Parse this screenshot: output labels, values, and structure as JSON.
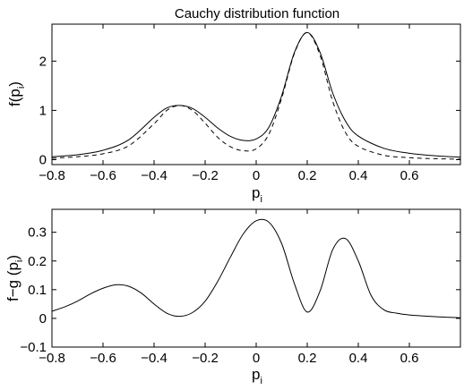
{
  "chart_data": [
    {
      "type": "line",
      "title": "Cauchy distribution function",
      "xlabel": "p",
      "xlabel_sub": "i",
      "ylabel_prefix": "f(p",
      "ylabel_sub": "i",
      "ylabel_suffix": ")",
      "xlim": [
        -0.8,
        0.8
      ],
      "ylim": [
        -0.1,
        2.75
      ],
      "xticks": [
        -0.8,
        -0.6,
        -0.4,
        -0.2,
        0,
        0.2,
        0.4,
        0.6
      ],
      "xtick_labels": [
        "−0.8",
        "−0.6",
        "−0.4",
        "−0.2",
        "0",
        "0.2",
        "0.4",
        "0.6"
      ],
      "yticks": [
        0,
        1,
        2
      ],
      "ytick_labels": [
        "0",
        "1",
        "2"
      ],
      "grid": false,
      "series": [
        {
          "style": "solid",
          "color": "#000000",
          "x": [
            -0.8,
            -0.7,
            -0.6,
            -0.5,
            -0.4,
            -0.35,
            -0.3,
            -0.25,
            -0.2,
            -0.15,
            -0.1,
            -0.05,
            0,
            0.05,
            0.1,
            0.15,
            0.2,
            0.25,
            0.3,
            0.35,
            0.4,
            0.5,
            0.6,
            0.7,
            0.8
          ],
          "y": [
            0.06,
            0.1,
            0.19,
            0.4,
            0.86,
            1.05,
            1.1,
            1.04,
            0.86,
            0.64,
            0.47,
            0.39,
            0.42,
            0.66,
            1.3,
            2.18,
            2.58,
            2.18,
            1.35,
            0.78,
            0.48,
            0.23,
            0.13,
            0.08,
            0.05
          ]
        },
        {
          "style": "dashed",
          "color": "#000000",
          "x": [
            -0.8,
            -0.7,
            -0.6,
            -0.5,
            -0.4,
            -0.35,
            -0.3,
            -0.25,
            -0.2,
            -0.15,
            -0.1,
            -0.05,
            0,
            0.05,
            0.1,
            0.15,
            0.2,
            0.25,
            0.3,
            0.35,
            0.4,
            0.5,
            0.6,
            0.7,
            0.8
          ],
          "y": [
            0.03,
            0.06,
            0.12,
            0.28,
            0.73,
            1.0,
            1.1,
            1.0,
            0.74,
            0.45,
            0.26,
            0.18,
            0.22,
            0.52,
            1.25,
            2.16,
            2.58,
            2.12,
            1.18,
            0.55,
            0.27,
            0.09,
            0.04,
            0.02,
            0.01
          ]
        }
      ]
    },
    {
      "type": "line",
      "title": "",
      "xlabel": "p",
      "xlabel_sub": "i",
      "ylabel_prefix": "f−g (p",
      "ylabel_sub": "i",
      "ylabel_suffix": ")",
      "xlim": [
        -0.8,
        0.8
      ],
      "ylim": [
        -0.1,
        0.38
      ],
      "xticks": [
        -0.8,
        -0.6,
        -0.4,
        -0.2,
        0,
        0.2,
        0.4,
        0.6
      ],
      "xtick_labels": [
        "−0.8",
        "−0.6",
        "−0.4",
        "−0.2",
        "0",
        "0.2",
        "0.4",
        "0.6"
      ],
      "yticks": [
        -0.1,
        0,
        0.1,
        0.2,
        0.3
      ],
      "ytick_labels": [
        "−0.1",
        "0",
        "0.1",
        "0.2",
        "0.3"
      ],
      "grid": false,
      "series": [
        {
          "style": "solid",
          "color": "#000000",
          "x": [
            -0.8,
            -0.75,
            -0.7,
            -0.65,
            -0.6,
            -0.55,
            -0.5,
            -0.45,
            -0.4,
            -0.35,
            -0.3,
            -0.25,
            -0.2,
            -0.15,
            -0.1,
            -0.05,
            0,
            0.05,
            0.1,
            0.15,
            0.2,
            0.25,
            0.3,
            0.35,
            0.4,
            0.45,
            0.5,
            0.55,
            0.6,
            0.7,
            0.8
          ],
          "y": [
            0.025,
            0.04,
            0.06,
            0.085,
            0.105,
            0.117,
            0.112,
            0.088,
            0.05,
            0.018,
            0.007,
            0.02,
            0.06,
            0.13,
            0.215,
            0.295,
            0.34,
            0.335,
            0.26,
            0.12,
            0.022,
            0.095,
            0.24,
            0.278,
            0.2,
            0.08,
            0.03,
            0.018,
            0.012,
            0.006,
            0.002
          ]
        }
      ]
    }
  ]
}
